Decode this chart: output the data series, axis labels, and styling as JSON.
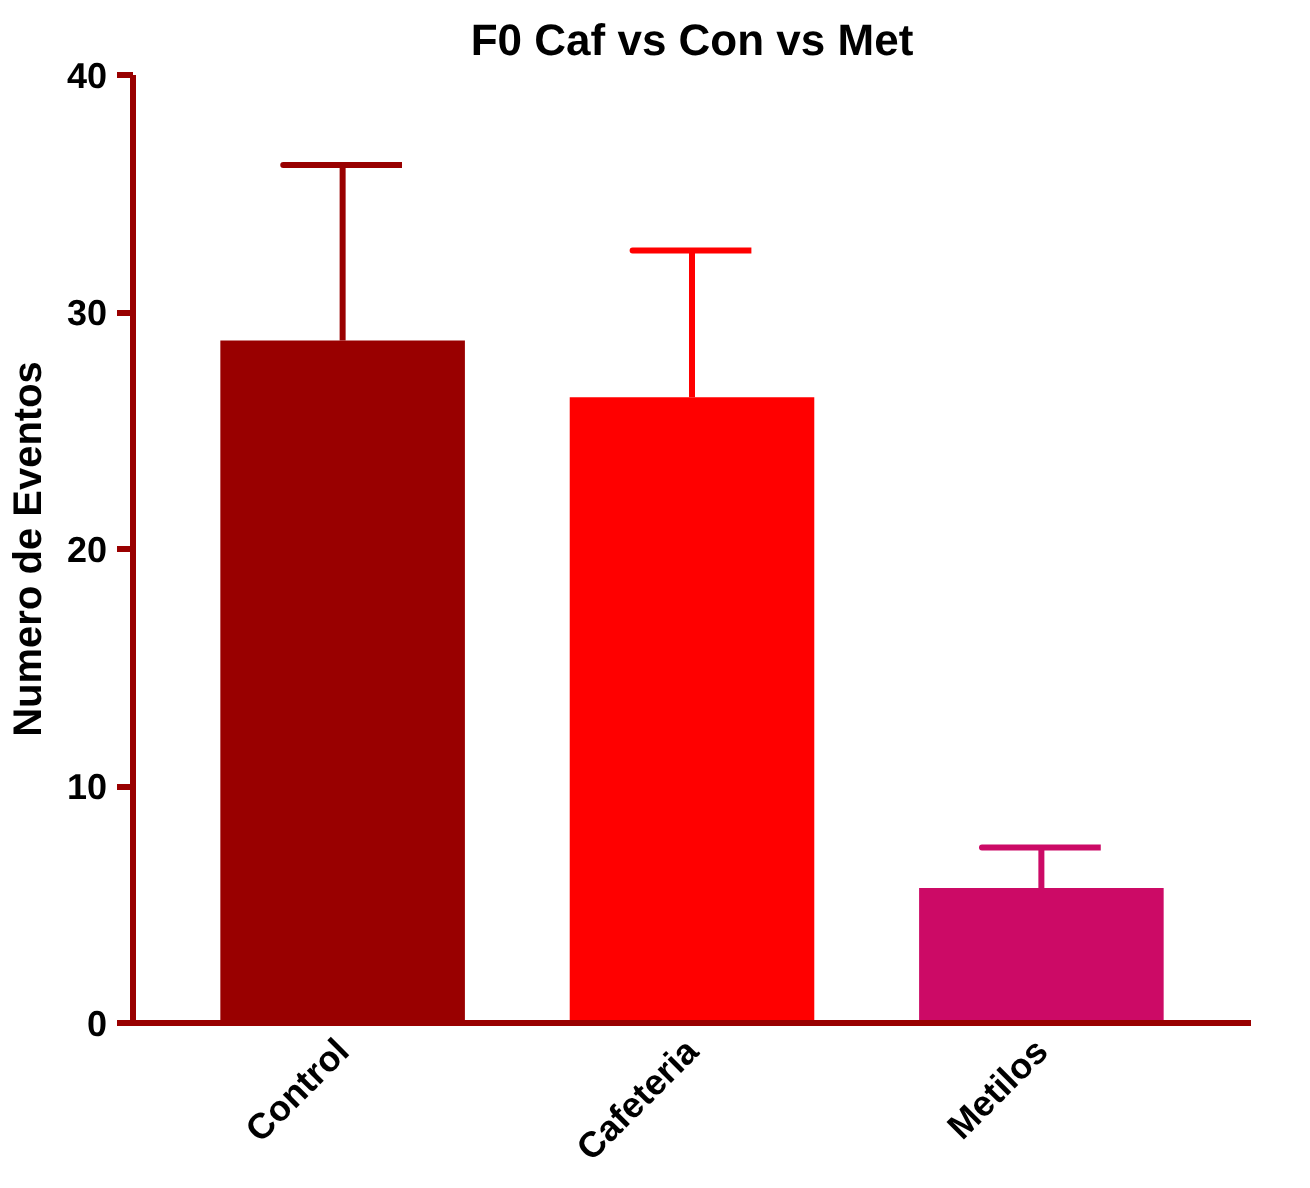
{
  "chart_data": {
    "type": "bar",
    "title": "F0 Caf vs Con vs Met",
    "ylabel": "Numero de Eventos",
    "categories": [
      "Control",
      "Cafeteria",
      "Metilos"
    ],
    "values": [
      28.8,
      26.4,
      5.7
    ],
    "colors": [
      "#990000",
      "#ff0000",
      "#cc0a66"
    ],
    "errors": [
      [
        28.8,
        36.2
      ],
      [
        26.4,
        32.6
      ],
      [
        5.7,
        7.4
      ]
    ],
    "ylim": [
      0,
      40
    ],
    "yticks": [
      0,
      10,
      20,
      30,
      40
    ],
    "grid": false
  }
}
